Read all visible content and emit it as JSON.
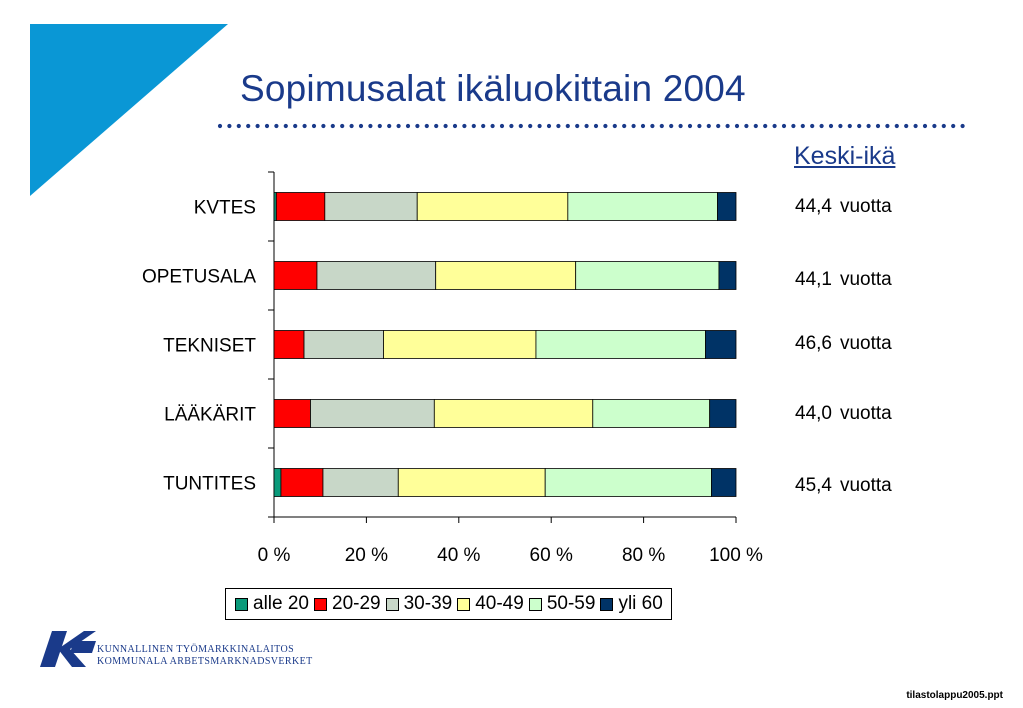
{
  "slide": {
    "title": "Sopimusalat ikäluokittain 2004",
    "footer": "tilastolappu2005.ppt"
  },
  "keski_ika": {
    "heading": "Keski-ikä",
    "unit": "vuotta",
    "values": [
      "44,4",
      "44,1",
      "46,6",
      "44,0",
      "45,4"
    ]
  },
  "logo": {
    "line1": "KUNNALLINEN TYÖMARKKINALAITOS",
    "line2": "KOMMUNALA ARBETSMARKNADSVERKET",
    "icon": "kt-logo-icon"
  },
  "colors": {
    "title": "#1a3a8a",
    "corner": "#0a97d5",
    "logo": "#1a3a8a"
  },
  "chart_data": {
    "type": "bar",
    "orientation": "horizontal",
    "stacked": "percent",
    "title": "",
    "xlabel": "",
    "ylabel": "",
    "xlim": [
      0,
      100
    ],
    "x_ticks": [
      "0 %",
      "20 %",
      "40 %",
      "60 %",
      "80 %",
      "100 %"
    ],
    "categories": [
      "KVTES",
      "OPETUSALA",
      "TEKNISET",
      "LÄÄKÄRIT",
      "TUNTITES"
    ],
    "legend_position": "bottom",
    "grid": false,
    "series": [
      {
        "name": "alle 20",
        "color": "#0a9a7a",
        "values": [
          0.5,
          0.0,
          0.0,
          0.0,
          1.5
        ]
      },
      {
        "name": "20-29",
        "color": "#ff0000",
        "values": [
          10.5,
          9.3,
          6.5,
          7.9,
          9.1
        ]
      },
      {
        "name": "30-39",
        "color": "#c8d7c8",
        "values": [
          20.0,
          25.7,
          17.2,
          26.8,
          16.3
        ]
      },
      {
        "name": "40-49",
        "color": "#ffff99",
        "values": [
          32.6,
          30.3,
          33.0,
          34.3,
          31.8
        ]
      },
      {
        "name": "50-59",
        "color": "#ccffcc",
        "values": [
          32.4,
          31.0,
          36.7,
          25.3,
          36.0
        ]
      },
      {
        "name": "yli 60",
        "color": "#003366",
        "values": [
          4.0,
          3.7,
          6.6,
          5.7,
          5.3
        ]
      }
    ]
  }
}
